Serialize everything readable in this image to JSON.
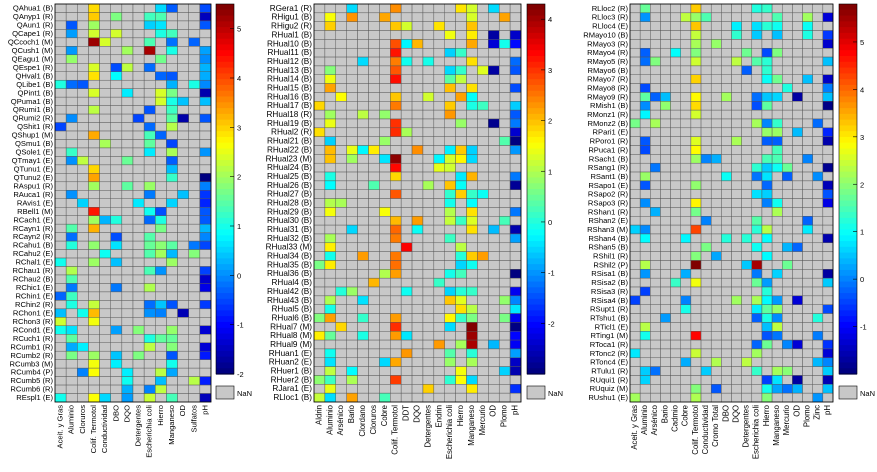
{
  "chart_data": [
    {
      "type": "heatmap",
      "rows": [
        "QAhua1 (B)",
        "QAnyp1 (R)",
        "QAun1 (R)",
        "QCape1 (R)",
        "QCcoch1 (M)",
        "QCush1 (M)",
        "QEagu1 (M)",
        "QEspe1 (R)",
        "QHval1 (B)",
        "QLibe1 (B)",
        "QPint1 (B)",
        "QPuma1 (B)",
        "QRumi1 (B)",
        "QRumi2 (R)",
        "QShit1 (R)",
        "QShup1 (M)",
        "QSmu1 (B)",
        "QSole1 (E)",
        "QTmay1 (E)",
        "QTunu1 (E)",
        "QTunu2 (E)",
        "RAspu1 (R)",
        "RAuca1 (R)",
        "RAvis1 (E)",
        "RBell1 (M)",
        "RCach1 (E)",
        "RCayn1 (R)",
        "RCayn2 (R)",
        "RCahu1 (B)",
        "RCahu2 (E)",
        "RChal1 (E)",
        "RChau1 (R)",
        "RChau2 (B)",
        "RChic1 (E)",
        "RChin1 (E)",
        "RChin2 (R)",
        "RChon1 (E)",
        "RChon3 (R)",
        "RCond1 (E)",
        "RCuch1 (R)",
        "RCumb1 (R)",
        "RCumb2 (R)",
        "RCumb3 (M)",
        "RCumb4 (P)",
        "RCumb5 (R)",
        "RCumb6 (R)",
        "REspl1 (E)"
      ],
      "columns": [
        "Aceit. y Gras",
        "Aluminio",
        "Cloruros",
        "Colif. Termotol",
        "Conductividad",
        "DBO",
        "DQO",
        "Detergentes",
        "Escherichia coli",
        "Hierro",
        "Manganeso",
        "OD",
        "Sulfatos",
        "pH"
      ],
      "color_min": -2,
      "color_max": 5.5,
      "colorbar_ticks": [
        5,
        4,
        3,
        2,
        1,
        0,
        -1,
        -2
      ],
      "nan_label": "NaN",
      "notable_cells": [
        {
          "row": "QCcoch1 (M)",
          "column": "Colif. Termotol",
          "value": 5.3
        },
        {
          "row": "QCush1 (M)",
          "column": "Escherichia coli",
          "value": 5.2
        },
        {
          "row": "RBell1 (M)",
          "column": "Colif. Termotol",
          "value": 4.4
        },
        {
          "row": "QTunu2 (E)",
          "column": "pH",
          "value": -2.0
        }
      ]
    },
    {
      "type": "heatmap",
      "rows": [
        "RGera1 (R)",
        "RHigu1 (B)",
        "RHigu2 (R)",
        "RHual1 (B)",
        "RHual10 (B)",
        "RHual11 (B)",
        "RHual12 (B)",
        "RHual13 (B)",
        "RHual14 (B)",
        "RHual15 (B)",
        "RHual16 (B)",
        "RHual17 (B)",
        "RHual18 (R)",
        "RHual19 (B)",
        "RHual2 (R)",
        "RHual21 (B)",
        "RHual22 (B)",
        "RHual23 (M)",
        "RHual24 (B)",
        "RHual25 (B)",
        "RHual26 (B)",
        "RHual27 (B)",
        "RHual28 (B)",
        "RHual29 (B)",
        "RHual30 (B)",
        "RHual31 (B)",
        "RHual32 (B)",
        "RHual33 (M)",
        "RHual34 (B)",
        "RHual35 (B)",
        "RHual36 (B)",
        "RHual4 (B)",
        "RHual42 (B)",
        "RHual43 (B)",
        "RHual5 (B)",
        "RHual6 (B)",
        "RHual7 (M)",
        "RHual8 (M)",
        "RHual9 (M)",
        "RHuan1 (E)",
        "RHuan2 (E)",
        "RHuer1 (B)",
        "RHuer2 (B)",
        "RJara1 (E)",
        "RLloc1 (B)"
      ],
      "columns": [
        "Aldrin",
        "Aluminio",
        "Arsénico",
        "Bario",
        "Clordano",
        "Cloruros",
        "Cobre",
        "Colif. Termotol",
        "DDT",
        "DQO",
        "Detergentes",
        "Endrin",
        "Escherichia coli",
        "Hierro",
        "Manganeso",
        "Mercurio",
        "OD",
        "Plomo",
        "pH"
      ],
      "color_min": -3,
      "color_max": 4.3,
      "colorbar_ticks": [
        4,
        3,
        2,
        1,
        0,
        -1,
        -2
      ],
      "nan_label": "NaN",
      "notable_cells": [
        {
          "row": "RHual23 (M)",
          "column": "Colif. Termotol",
          "value": 4.2
        },
        {
          "row": "RHual7 (M)",
          "column": "Manganeso",
          "value": 4.3
        },
        {
          "row": "RHual8 (M)",
          "column": "Manganeso",
          "value": 4.1
        },
        {
          "row": "RHual9 (M)",
          "column": "Manganeso",
          "value": 4.0
        },
        {
          "row": "RHual33 (M)",
          "column": "DDT",
          "value": 3.4
        },
        {
          "row": "RHual36 (B)",
          "column": "pH",
          "value": -3.0
        }
      ]
    },
    {
      "type": "heatmap",
      "rows": [
        "RLloc2 (R)",
        "RLloc3 (R)",
        "RLloc4 (E)",
        "RMayo10 (B)",
        "RMayo3 (R)",
        "RMayo4 (R)",
        "RMayo5 (R)",
        "RMayo6 (B)",
        "RMayo7 (R)",
        "RMayo8 (R)",
        "RMayo9 (R)",
        "RMish1 (B)",
        "RMonz1 (R)",
        "RMonz2 (B)",
        "RPari1 (E)",
        "RPoro1 (R)",
        "RPuca1 (R)",
        "RSach1 (B)",
        "RSang1 (R)",
        "RSant1 (B)",
        "RSapo1 (E)",
        "RSapo2 (R)",
        "RSapo3 (R)",
        "RShan1 (R)",
        "RShan2 (E)",
        "RShan3 (M)",
        "RShan4 (B)",
        "RShan5 (B)",
        "RShil1 (R)",
        "RShil2 (P)",
        "RSisa1 (B)",
        "RSisa2 (B)",
        "RSisa3 (R)",
        "RSisa4 (B)",
        "RSupt1 (R)",
        "RTshu1 (B)",
        "RTicl1 (E)",
        "RTing1 (M)",
        "RToca1 (R)",
        "RTonc2 (R)",
        "RTonc4 (E)",
        "RTulu1 (R)",
        "RUqui1 (R)",
        "RUquiz (M)",
        "RUshu1 (E)"
      ],
      "columns": [
        "Aceit. y Gras",
        "Aluminio",
        "Arsénico",
        "Bario",
        "Cadmio",
        "Cobre",
        "Colif. Termotol",
        "Conductividad",
        "Cromo Total",
        "DBO",
        "DQO",
        "Detergentes",
        "Escherichia coli",
        "Hierro",
        "Manganeso",
        "Mercurio",
        "OD",
        "Plomo",
        "Zinc",
        "pH"
      ],
      "color_min": -2,
      "color_max": 5.8,
      "colorbar_ticks": [
        5,
        4,
        3,
        2,
        1,
        0,
        -1
      ],
      "nan_label": "NaN",
      "notable_cells": [
        {
          "row": "RShil2 (P)",
          "column": "Colif. Termotol",
          "value": 5.8
        },
        {
          "row": "RShil2 (P)",
          "column": "Escherichia coli",
          "value": 5.5
        },
        {
          "row": "RTing1 (M)",
          "column": "Colif. Termotol",
          "value": 4.8
        },
        {
          "row": "RShan3 (M)",
          "column": "Colif. Termotol",
          "value": 4.3
        }
      ]
    }
  ]
}
